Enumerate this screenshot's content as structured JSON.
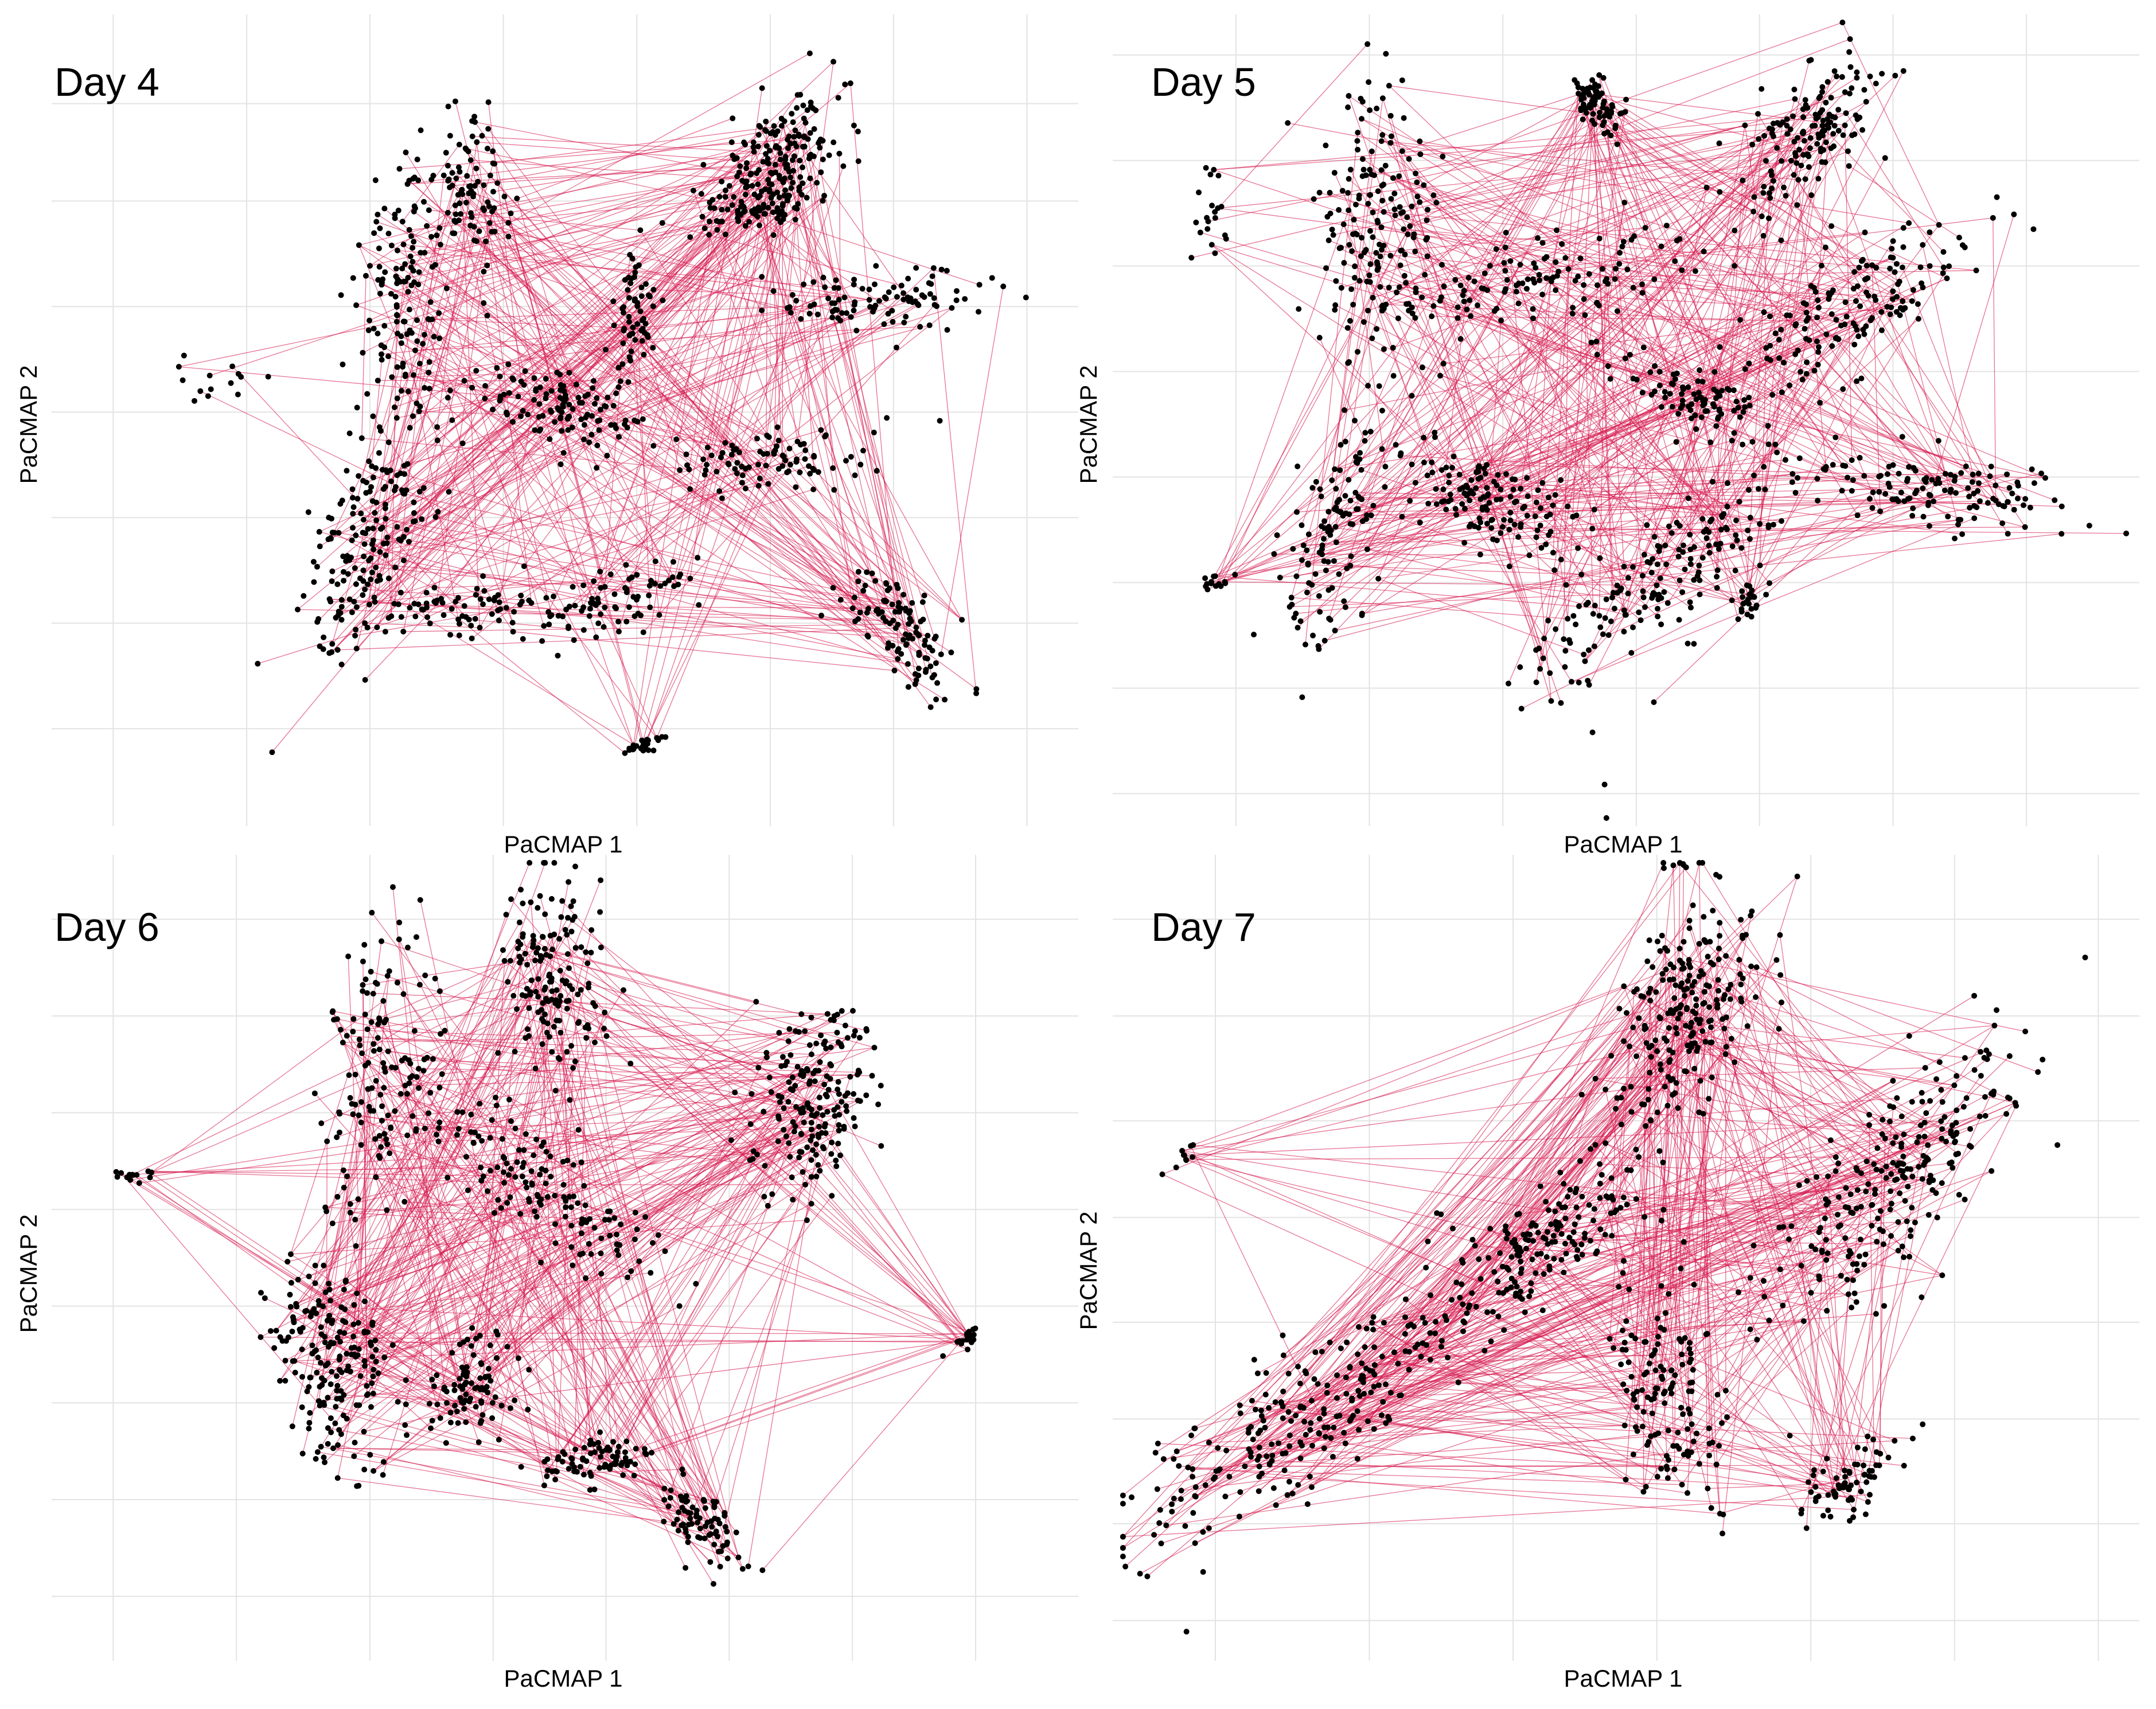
{
  "colors": {
    "points": "#000000",
    "edges": "#d6174c",
    "grid": "#e3e3e3",
    "background": "#ffffff"
  },
  "chart_data": [
    {
      "type": "scatter",
      "title": "Day 4",
      "xlabel": "PaCMAP 1",
      "ylabel": "PaCMAP 2",
      "grid": true,
      "xlim": [
        0,
        100
      ],
      "ylim": [
        0,
        100
      ],
      "x_gridlines": [
        6,
        19,
        31,
        44,
        57,
        70,
        82,
        95
      ],
      "y_gridlines": [
        12,
        25,
        38,
        51,
        64,
        77,
        89
      ],
      "series": [
        {
          "marks": "points",
          "clusters": [
            {
              "cx": 34,
              "cy": 66,
              "spread": 3.5,
              "n": 140
            },
            {
              "cx": 41,
              "cy": 78,
              "spread": 3.0,
              "n": 90
            },
            {
              "cx": 71,
              "cy": 83,
              "spread": 4.0,
              "n": 160
            },
            {
              "cx": 69,
              "cy": 76,
              "spread": 2.5,
              "n": 80
            },
            {
              "cx": 80,
              "cy": 65,
              "spread": 3.5,
              "n": 100
            },
            {
              "cx": 57,
              "cy": 64,
              "spread": 2.0,
              "n": 60
            },
            {
              "cx": 50,
              "cy": 52,
              "spread": 4.0,
              "n": 120
            },
            {
              "cx": 70,
              "cy": 45,
              "spread": 3.0,
              "n": 90
            },
            {
              "cx": 31,
              "cy": 35,
              "spread": 4.5,
              "n": 170
            },
            {
              "cx": 40,
              "cy": 27,
              "spread": 2.5,
              "n": 70
            },
            {
              "cx": 55,
              "cy": 28,
              "spread": 3.0,
              "n": 80
            },
            {
              "cx": 83,
              "cy": 24,
              "spread": 3.0,
              "n": 110
            },
            {
              "cx": 58,
              "cy": 10,
              "spread": 0.8,
              "n": 25
            },
            {
              "cx": 15,
              "cy": 55,
              "spread": 3.0,
              "n": 14
            }
          ]
        },
        {
          "marks": "edges",
          "count": 420
        }
      ]
    },
    {
      "type": "scatter",
      "title": "Day 5",
      "xlabel": "PaCMAP 1",
      "ylabel": "PaCMAP 2",
      "grid": true,
      "xlim": [
        0,
        100
      ],
      "ylim": [
        0,
        100
      ],
      "x_gridlines": [
        12,
        25,
        38,
        51,
        63,
        76,
        89
      ],
      "y_gridlines": [
        4,
        17,
        30,
        43,
        56,
        69,
        82,
        95
      ],
      "series": [
        {
          "marks": "points",
          "clusters": [
            {
              "cx": 47,
              "cy": 89,
              "spread": 2.0,
              "n": 70
            },
            {
              "cx": 68,
              "cy": 86,
              "spread": 4.0,
              "n": 150
            },
            {
              "cx": 26,
              "cy": 73,
              "spread": 5.0,
              "n": 180
            },
            {
              "cx": 42,
              "cy": 67,
              "spread": 4.0,
              "n": 120
            },
            {
              "cx": 70,
              "cy": 62,
              "spread": 5.0,
              "n": 170
            },
            {
              "cx": 56,
              "cy": 53,
              "spread": 2.5,
              "n": 70
            },
            {
              "cx": 80,
              "cy": 41,
              "spread": 3.5,
              "n": 130
            },
            {
              "cx": 37,
              "cy": 40,
              "spread": 4.0,
              "n": 140
            },
            {
              "cx": 22,
              "cy": 37,
              "spread": 3.5,
              "n": 120
            },
            {
              "cx": 53,
              "cy": 30,
              "spread": 4.5,
              "n": 170
            },
            {
              "cx": 62,
              "cy": 28,
              "spread": 1.0,
              "n": 25
            },
            {
              "cx": 10,
              "cy": 76,
              "spread": 1.2,
              "n": 20
            },
            {
              "cx": 10,
              "cy": 30,
              "spread": 0.7,
              "n": 15
            },
            {
              "cx": 50,
              "cy": 15,
              "spread": 5.0,
              "n": 6
            }
          ]
        },
        {
          "marks": "edges",
          "count": 480
        }
      ]
    },
    {
      "type": "scatter",
      "title": "Day 6",
      "xlabel": "PaCMAP 1",
      "ylabel": "PaCMAP 2",
      "grid": true,
      "xlim": [
        0,
        100
      ],
      "ylim": [
        0,
        100
      ],
      "x_gridlines": [
        6,
        18,
        31,
        43,
        54,
        66,
        78,
        90
      ],
      "y_gridlines": [
        8,
        20,
        32,
        44,
        56,
        68,
        80,
        92
      ],
      "series": [
        {
          "marks": "points",
          "clusters": [
            {
              "cx": 49,
              "cy": 84,
              "spread": 4.0,
              "n": 160
            },
            {
              "cx": 32,
              "cy": 74,
              "spread": 4.0,
              "n": 130
            },
            {
              "cx": 74,
              "cy": 70,
              "spread": 5.0,
              "n": 190
            },
            {
              "cx": 47,
              "cy": 59,
              "spread": 4.5,
              "n": 150
            },
            {
              "cx": 28,
              "cy": 37,
              "spread": 5.0,
              "n": 200
            },
            {
              "cx": 41,
              "cy": 34,
              "spread": 3.0,
              "n": 90
            },
            {
              "cx": 53,
              "cy": 25,
              "spread": 2.5,
              "n": 80
            },
            {
              "cx": 63,
              "cy": 17,
              "spread": 2.5,
              "n": 80
            },
            {
              "cx": 89,
              "cy": 40,
              "spread": 0.8,
              "n": 18
            },
            {
              "cx": 8,
              "cy": 60,
              "spread": 0.8,
              "n": 14
            }
          ]
        },
        {
          "marks": "edges",
          "count": 460
        }
      ]
    },
    {
      "type": "scatter",
      "title": "Day 7",
      "xlabel": "PaCMAP 1",
      "ylabel": "PaCMAP 2",
      "grid": true,
      "xlim": [
        0,
        100
      ],
      "ylim": [
        0,
        100
      ],
      "x_gridlines": [
        10,
        25,
        39,
        53,
        68,
        82,
        96
      ],
      "y_gridlines": [
        5,
        17,
        30,
        42,
        55,
        67,
        80,
        92
      ],
      "series": [
        {
          "marks": "points",
          "clusters": [
            {
              "cx": 56,
              "cy": 81,
              "spread": 5.5,
              "n": 220
            },
            {
              "cx": 77,
              "cy": 60,
              "spread": 6.0,
              "n": 240
            },
            {
              "cx": 42,
              "cy": 52,
              "spread": 4.5,
              "n": 160
            },
            {
              "cx": 20,
              "cy": 32,
              "spread": 6.0,
              "n": 260
            },
            {
              "cx": 54,
              "cy": 33,
              "spread": 4.0,
              "n": 140
            },
            {
              "cx": 72,
              "cy": 22,
              "spread": 2.5,
              "n": 70
            },
            {
              "cx": 56,
              "cy": 99,
              "spread": 0.6,
              "n": 10
            },
            {
              "cx": 7,
              "cy": 63,
              "spread": 0.8,
              "n": 10
            }
          ]
        },
        {
          "marks": "edges",
          "count": 480
        }
      ]
    }
  ]
}
